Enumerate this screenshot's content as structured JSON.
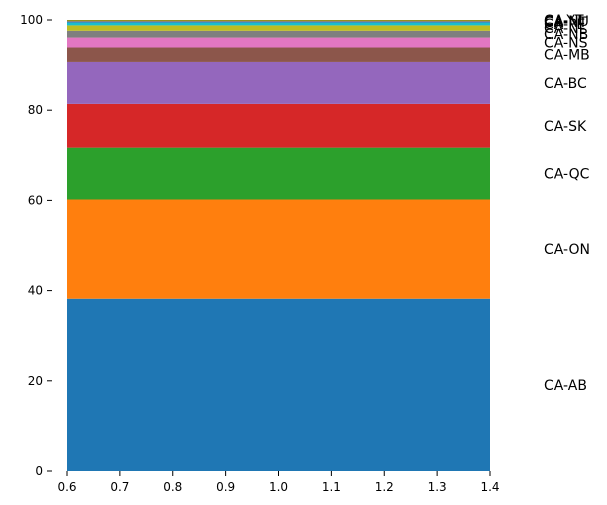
{
  "chart_data": {
    "type": "bar",
    "stacked": true,
    "grid": false,
    "x_ticks": [
      "0.6",
      "0.7",
      "0.8",
      "0.9",
      "1.0",
      "1.1",
      "1.2",
      "1.3",
      "1.4"
    ],
    "xlim": [
      0.6,
      1.4
    ],
    "y_ticks": [
      "0",
      "20",
      "40",
      "60",
      "80",
      "100"
    ],
    "ylim": [
      0,
      100
    ],
    "bar_extent": [
      0.6,
      1.4
    ],
    "segments": [
      {
        "label": "CA-AB",
        "value": 38.2,
        "color": "#1f77b4"
      },
      {
        "label": "CA-ON",
        "value": 22.0,
        "color": "#ff7f0e"
      },
      {
        "label": "CA-QC",
        "value": 11.5,
        "color": "#2ca02c"
      },
      {
        "label": "CA-SK",
        "value": 9.7,
        "color": "#d62728"
      },
      {
        "label": "CA-BC",
        "value": 9.3,
        "color": "#9467bd"
      },
      {
        "label": "CA-MB",
        "value": 3.2,
        "color": "#8c564b"
      },
      {
        "label": "CA-NS",
        "value": 2.2,
        "color": "#e377c2"
      },
      {
        "label": "CA-NB",
        "value": 1.5,
        "color": "#7f7f7f"
      },
      {
        "label": "CA-NL",
        "value": 1.2,
        "color": "#bcbd22"
      },
      {
        "label": "CA-PE",
        "value": 0.6,
        "color": "#17becf"
      },
      {
        "label": "CA-NT",
        "value": 0.3,
        "color": "#1f77b4"
      },
      {
        "label": "CA-NU",
        "value": 0.2,
        "color": "#ff7f0e"
      },
      {
        "label": "CA-YT",
        "value": 0.1,
        "color": "#2ca02c"
      }
    ]
  }
}
